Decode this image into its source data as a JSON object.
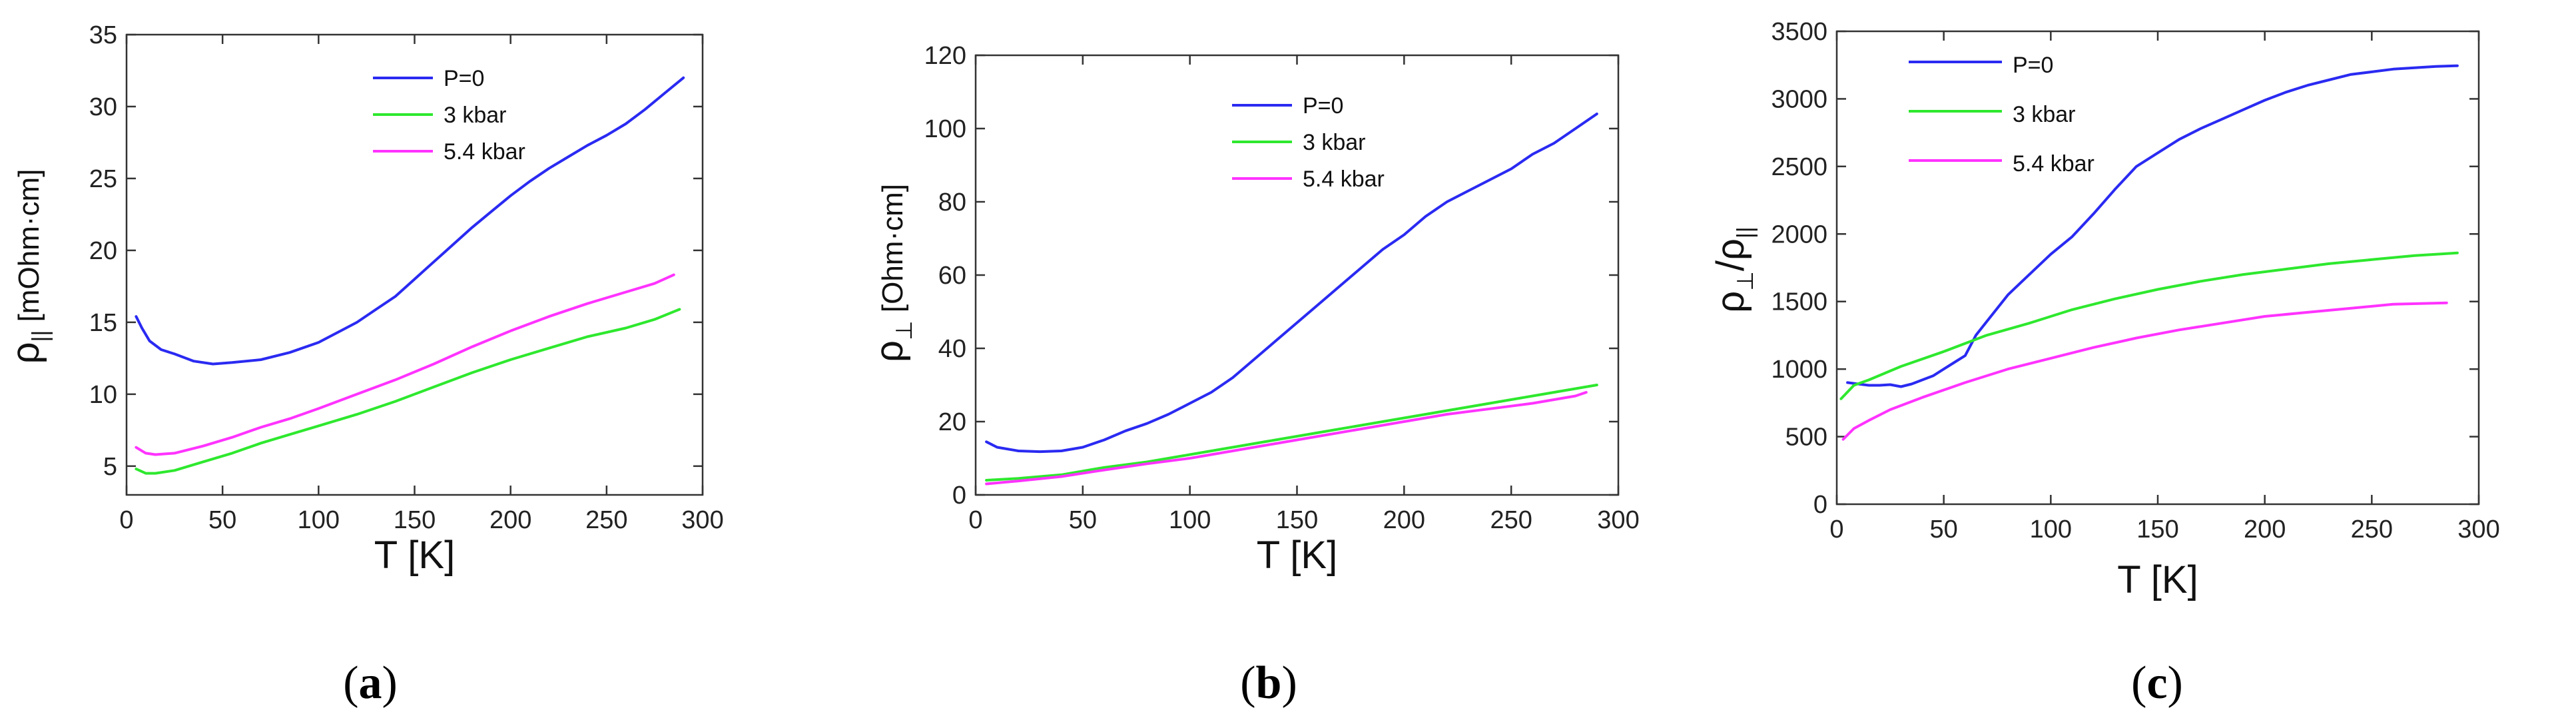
{
  "chart_data": [
    {
      "type": "line",
      "panel_caption": "(a)",
      "panel_letter": "a",
      "ylabel_base": "ρ",
      "ylabel_sub": "||",
      "ylabel_unit": " [mOhm·cm]",
      "xlabel": "T [K]",
      "xlim": [
        0,
        300
      ],
      "ylim": [
        3,
        35
      ],
      "xticks": [
        0,
        50,
        100,
        150,
        200,
        250,
        300
      ],
      "yticks": [
        5,
        10,
        15,
        20,
        25,
        30,
        35
      ],
      "legend_position": "top-center",
      "series": [
        {
          "name": "P=0",
          "color": "#2a2af2",
          "points": [
            [
              5,
              15.4
            ],
            [
              8,
              14.6
            ],
            [
              12,
              13.7
            ],
            [
              18,
              13.1
            ],
            [
              25,
              12.8
            ],
            [
              35,
              12.3
            ],
            [
              45,
              12.1
            ],
            [
              55,
              12.2
            ],
            [
              70,
              12.4
            ],
            [
              85,
              12.9
            ],
            [
              100,
              13.6
            ],
            [
              110,
              14.3
            ],
            [
              120,
              15.0
            ],
            [
              130,
              15.9
            ],
            [
              140,
              16.8
            ],
            [
              150,
              18.0
            ],
            [
              160,
              19.2
            ],
            [
              170,
              20.4
            ],
            [
              180,
              21.6
            ],
            [
              190,
              22.7
            ],
            [
              200,
              23.8
            ],
            [
              210,
              24.8
            ],
            [
              220,
              25.7
            ],
            [
              230,
              26.5
            ],
            [
              240,
              27.3
            ],
            [
              250,
              28.0
            ],
            [
              260,
              28.8
            ],
            [
              270,
              29.8
            ],
            [
              280,
              30.9
            ],
            [
              290,
              32.0
            ]
          ]
        },
        {
          "name": "3 kbar",
          "color": "#2ee82e",
          "points": [
            [
              5,
              4.8
            ],
            [
              10,
              4.5
            ],
            [
              15,
              4.5
            ],
            [
              25,
              4.7
            ],
            [
              40,
              5.3
            ],
            [
              55,
              5.9
            ],
            [
              70,
              6.6
            ],
            [
              85,
              7.2
            ],
            [
              100,
              7.8
            ],
            [
              120,
              8.6
            ],
            [
              140,
              9.5
            ],
            [
              160,
              10.5
            ],
            [
              180,
              11.5
            ],
            [
              200,
              12.4
            ],
            [
              220,
              13.2
            ],
            [
              240,
              14.0
            ],
            [
              260,
              14.6
            ],
            [
              275,
              15.2
            ],
            [
              288,
              15.9
            ]
          ]
        },
        {
          "name": "5.4 kbar",
          "color": "#ff33ff",
          "points": [
            [
              5,
              6.3
            ],
            [
              10,
              5.9
            ],
            [
              15,
              5.8
            ],
            [
              25,
              5.9
            ],
            [
              40,
              6.4
            ],
            [
              55,
              7.0
            ],
            [
              70,
              7.7
            ],
            [
              85,
              8.3
            ],
            [
              100,
              9.0
            ],
            [
              120,
              10.0
            ],
            [
              140,
              11.0
            ],
            [
              160,
              12.1
            ],
            [
              180,
              13.3
            ],
            [
              200,
              14.4
            ],
            [
              220,
              15.4
            ],
            [
              240,
              16.3
            ],
            [
              260,
              17.1
            ],
            [
              275,
              17.7
            ],
            [
              285,
              18.3
            ]
          ]
        }
      ]
    },
    {
      "type": "line",
      "panel_caption": "(b)",
      "panel_letter": "b",
      "ylabel_base": "ρ",
      "ylabel_sub": "⊥",
      "ylabel_unit": " [Ohm·cm]",
      "xlabel": "T [K]",
      "xlim": [
        0,
        300
      ],
      "ylim": [
        0,
        120
      ],
      "xticks": [
        0,
        50,
        100,
        150,
        200,
        250,
        300
      ],
      "yticks": [
        0,
        20,
        40,
        60,
        80,
        100,
        120
      ],
      "legend_position": "top-center",
      "series": [
        {
          "name": "P=0",
          "color": "#2a2af2",
          "points": [
            [
              5,
              14.5
            ],
            [
              10,
              13
            ],
            [
              20,
              12
            ],
            [
              30,
              11.8
            ],
            [
              40,
              12
            ],
            [
              50,
              13
            ],
            [
              60,
              15
            ],
            [
              70,
              17.5
            ],
            [
              80,
              19.5
            ],
            [
              90,
              22
            ],
            [
              100,
              25
            ],
            [
              110,
              28
            ],
            [
              120,
              32
            ],
            [
              130,
              37
            ],
            [
              140,
              42
            ],
            [
              150,
              47
            ],
            [
              160,
              52
            ],
            [
              170,
              57
            ],
            [
              180,
              62
            ],
            [
              190,
              67
            ],
            [
              200,
              71
            ],
            [
              210,
              76
            ],
            [
              220,
              80
            ],
            [
              230,
              83
            ],
            [
              240,
              86
            ],
            [
              250,
              89
            ],
            [
              260,
              93
            ],
            [
              270,
              96
            ],
            [
              280,
              100
            ],
            [
              290,
              104
            ]
          ]
        },
        {
          "name": "3 kbar",
          "color": "#2ee82e",
          "points": [
            [
              5,
              4.0
            ],
            [
              20,
              4.5
            ],
            [
              40,
              5.5
            ],
            [
              60,
              7.5
            ],
            [
              80,
              9.0
            ],
            [
              100,
              11
            ],
            [
              120,
              13
            ],
            [
              140,
              15
            ],
            [
              160,
              17
            ],
            [
              180,
              19
            ],
            [
              200,
              21
            ],
            [
              220,
              23
            ],
            [
              240,
              25
            ],
            [
              260,
              27
            ],
            [
              280,
              29
            ],
            [
              290,
              30
            ]
          ]
        },
        {
          "name": "5.4 kbar",
          "color": "#ff33ff",
          "points": [
            [
              5,
              3.0
            ],
            [
              20,
              3.8
            ],
            [
              40,
              5.0
            ],
            [
              60,
              6.8
            ],
            [
              80,
              8.5
            ],
            [
              100,
              10
            ],
            [
              120,
              12
            ],
            [
              140,
              14
            ],
            [
              160,
              16
            ],
            [
              180,
              18
            ],
            [
              200,
              20
            ],
            [
              220,
              22
            ],
            [
              240,
              23.5
            ],
            [
              260,
              25
            ],
            [
              280,
              27
            ],
            [
              285,
              28
            ]
          ]
        }
      ]
    },
    {
      "type": "line",
      "panel_caption": "(c)",
      "panel_letter": "c",
      "ylabel_base": "ρ",
      "ylabel_sub": "⊥",
      "ylabel_mid": "/ρ",
      "ylabel_sub2": "||",
      "xlabel": "T [K]",
      "xlim": [
        0,
        300
      ],
      "ylim": [
        0,
        3500
      ],
      "xticks": [
        0,
        50,
        100,
        150,
        200,
        250,
        300
      ],
      "yticks": [
        0,
        500,
        1000,
        1500,
        2000,
        2500,
        3000,
        3500
      ],
      "legend_position": "top-left",
      "series": [
        {
          "name": "P=0",
          "color": "#2a2af2",
          "points": [
            [
              5,
              900
            ],
            [
              10,
              890
            ],
            [
              15,
              880
            ],
            [
              20,
              880
            ],
            [
              25,
              885
            ],
            [
              30,
              870
            ],
            [
              35,
              890
            ],
            [
              40,
              920
            ],
            [
              45,
              950
            ],
            [
              50,
              1000
            ],
            [
              55,
              1050
            ],
            [
              60,
              1100
            ],
            [
              65,
              1250
            ],
            [
              70,
              1350
            ],
            [
              75,
              1450
            ],
            [
              80,
              1550
            ],
            [
              90,
              1700
            ],
            [
              100,
              1850
            ],
            [
              110,
              1980
            ],
            [
              120,
              2150
            ],
            [
              130,
              2330
            ],
            [
              140,
              2500
            ],
            [
              150,
              2600
            ],
            [
              160,
              2700
            ],
            [
              170,
              2780
            ],
            [
              180,
              2850
            ],
            [
              190,
              2920
            ],
            [
              200,
              2990
            ],
            [
              210,
              3050
            ],
            [
              220,
              3100
            ],
            [
              230,
              3140
            ],
            [
              240,
              3180
            ],
            [
              250,
              3200
            ],
            [
              260,
              3220
            ],
            [
              270,
              3230
            ],
            [
              280,
              3240
            ],
            [
              290,
              3245
            ]
          ]
        },
        {
          "name": "3 kbar",
          "color": "#2ee82e",
          "points": [
            [
              2,
              780
            ],
            [
              8,
              880
            ],
            [
              15,
              920
            ],
            [
              30,
              1020
            ],
            [
              50,
              1130
            ],
            [
              70,
              1250
            ],
            [
              90,
              1340
            ],
            [
              110,
              1440
            ],
            [
              130,
              1520
            ],
            [
              150,
              1590
            ],
            [
              170,
              1650
            ],
            [
              190,
              1700
            ],
            [
              210,
              1740
            ],
            [
              230,
              1780
            ],
            [
              250,
              1810
            ],
            [
              270,
              1840
            ],
            [
              290,
              1860
            ]
          ]
        },
        {
          "name": "5.4 kbar",
          "color": "#ff33ff",
          "points": [
            [
              3,
              480
            ],
            [
              8,
              560
            ],
            [
              15,
              620
            ],
            [
              25,
              700
            ],
            [
              40,
              790
            ],
            [
              60,
              900
            ],
            [
              80,
              1000
            ],
            [
              100,
              1080
            ],
            [
              120,
              1160
            ],
            [
              140,
              1230
            ],
            [
              160,
              1290
            ],
            [
              180,
              1340
            ],
            [
              200,
              1390
            ],
            [
              220,
              1420
            ],
            [
              240,
              1450
            ],
            [
              260,
              1480
            ],
            [
              285,
              1490
            ]
          ]
        }
      ]
    }
  ]
}
